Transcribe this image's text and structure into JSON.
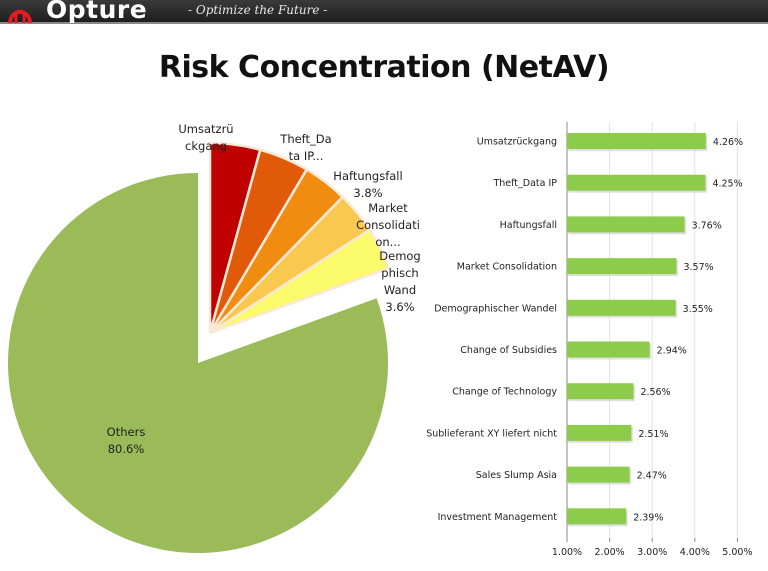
{
  "header": {
    "brand": "Opture",
    "tagline": "- Optimize the Future -",
    "logo_icon": "opture-logo-icon"
  },
  "page": {
    "title": "Risk Concentration (NetAV)"
  },
  "colors": {
    "header_bg": "#2a2a2a",
    "logo_red": "#e31b23",
    "bar_green": "#8dcb4a",
    "pie_others": "#9bbb59",
    "pie_slices": [
      "#c00000",
      "#e05a0a",
      "#f08c10",
      "#f9c84e",
      "#fafa6a"
    ]
  },
  "chart_data": [
    {
      "type": "pie",
      "title": "",
      "exploded_group": [
        "Umsatzrückgang",
        "Theft_Data IP",
        "Haftungsfall",
        "Market Consolidation",
        "Demographischer Wandel"
      ],
      "slices": [
        {
          "label": "Umsatzrückgang",
          "display_label": [
            "Umsatzrü",
            "ckgang"
          ],
          "value": 4.26
        },
        {
          "label": "Theft_Data IP",
          "display_label": [
            "Theft_Da",
            "ta IP..."
          ],
          "value": 4.25
        },
        {
          "label": "Haftungsfall",
          "display_label": [
            "Haftungsfall",
            "3.8%"
          ],
          "value": 3.8
        },
        {
          "label": "Market Consolidation",
          "display_label": [
            "Market",
            "Consolidati",
            "on..."
          ],
          "value": 3.57
        },
        {
          "label": "Demographischer Wandel",
          "display_label": [
            "Demog",
            "phisch",
            "Wand",
            "3.6%"
          ],
          "value": 3.6
        },
        {
          "label": "Others",
          "display_label": [
            "Others",
            "80.6%"
          ],
          "value": 80.6
        }
      ]
    },
    {
      "type": "bar",
      "orientation": "horizontal",
      "title": "",
      "xlabel": "",
      "ylabel": "",
      "categories": [
        "Umsatzrückgang",
        "Theft_Data IP",
        "Haftungsfall",
        "Market Consolidation",
        "Demographischer Wandel",
        "Change of Subsidies",
        "Change of Technology",
        "Sublieferant XY liefert nicht",
        "Sales Slump Asia",
        "Investment Management"
      ],
      "values": [
        4.26,
        4.25,
        3.76,
        3.57,
        3.55,
        2.94,
        2.56,
        2.51,
        2.47,
        2.39
      ],
      "value_labels": [
        "4.26%",
        "4.25%",
        "3.76%",
        "3.57%",
        "3.55%",
        "2.94%",
        "2.56%",
        "2.51%",
        "2.47%",
        "2.39%"
      ],
      "xlim": [
        1.0,
        5.0
      ],
      "x_ticks": [
        "1.00%",
        "2.00%",
        "3.00%",
        "4.00%",
        "5.00%"
      ],
      "grid": "vertical",
      "legend": "none"
    }
  ]
}
